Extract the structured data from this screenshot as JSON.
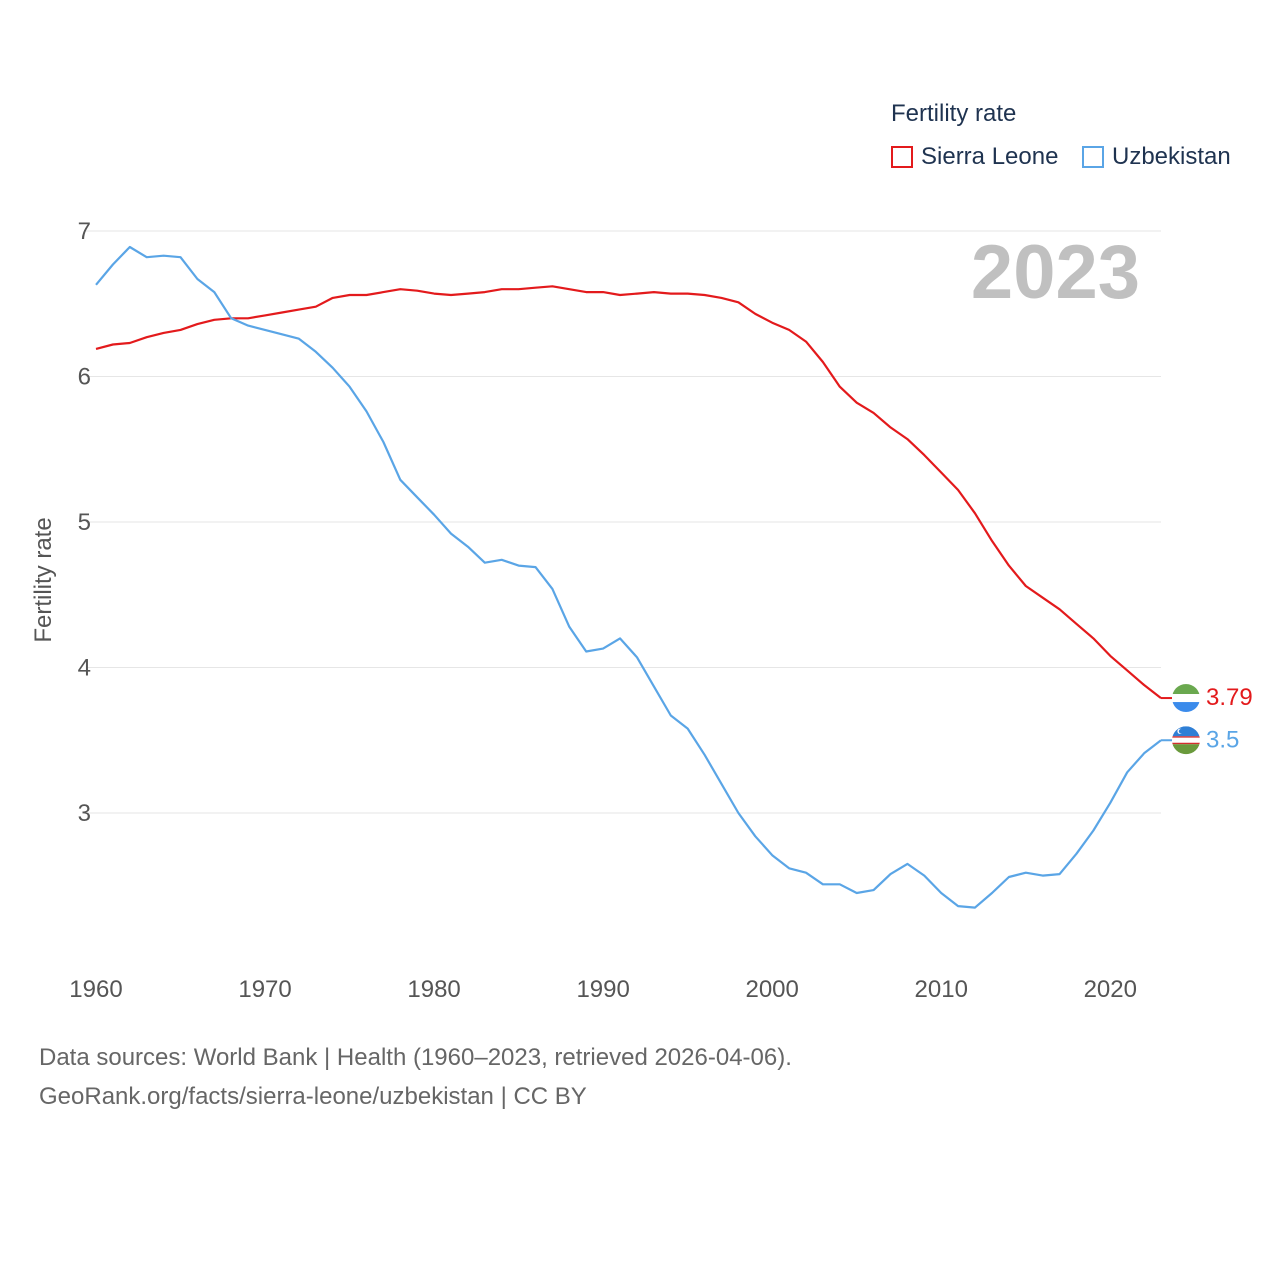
{
  "chart_data": {
    "type": "line",
    "title": "",
    "xlabel": "",
    "ylabel": "Fertility rate",
    "xlim": [
      1960,
      2023
    ],
    "ylim": [
      2,
      7
    ],
    "yticks": [
      3,
      4,
      5,
      6,
      7
    ],
    "xticks": [
      1960,
      1970,
      1980,
      1990,
      2000,
      2010,
      2020
    ],
    "year_label": "2023",
    "legend": {
      "title": "Fertility rate",
      "position": "top-right"
    },
    "x": [
      1960,
      1961,
      1962,
      1963,
      1964,
      1965,
      1966,
      1967,
      1968,
      1969,
      1970,
      1971,
      1972,
      1973,
      1974,
      1975,
      1976,
      1977,
      1978,
      1979,
      1980,
      1981,
      1982,
      1983,
      1984,
      1985,
      1986,
      1987,
      1988,
      1989,
      1990,
      1991,
      1992,
      1993,
      1994,
      1995,
      1996,
      1997,
      1998,
      1999,
      2000,
      2001,
      2002,
      2003,
      2004,
      2005,
      2006,
      2007,
      2008,
      2009,
      2010,
      2011,
      2012,
      2013,
      2014,
      2015,
      2016,
      2017,
      2018,
      2019,
      2020,
      2021,
      2022,
      2023
    ],
    "series": [
      {
        "name": "Sierra Leone",
        "color": "#e31a1c",
        "end_label": "3.79",
        "values": [
          6.19,
          6.22,
          6.23,
          6.27,
          6.3,
          6.32,
          6.36,
          6.39,
          6.4,
          6.4,
          6.42,
          6.44,
          6.46,
          6.48,
          6.54,
          6.56,
          6.56,
          6.58,
          6.6,
          6.59,
          6.57,
          6.56,
          6.57,
          6.58,
          6.6,
          6.6,
          6.61,
          6.62,
          6.6,
          6.58,
          6.58,
          6.56,
          6.57,
          6.58,
          6.57,
          6.57,
          6.56,
          6.54,
          6.51,
          6.43,
          6.37,
          6.32,
          6.24,
          6.1,
          5.93,
          5.82,
          5.75,
          5.65,
          5.57,
          5.46,
          5.34,
          5.22,
          5.06,
          4.87,
          4.7,
          4.56,
          4.48,
          4.4,
          4.3,
          4.2,
          4.08,
          3.98,
          3.88,
          3.79
        ]
      },
      {
        "name": "Uzbekistan",
        "color": "#5aa5e6",
        "end_label": "3.5",
        "values": [
          6.63,
          6.77,
          6.89,
          6.82,
          6.83,
          6.82,
          6.67,
          6.58,
          6.4,
          6.35,
          6.32,
          6.29,
          6.26,
          6.17,
          6.06,
          5.93,
          5.76,
          5.55,
          5.29,
          5.17,
          5.05,
          4.92,
          4.83,
          4.72,
          4.74,
          4.7,
          4.69,
          4.54,
          4.28,
          4.11,
          4.13,
          4.2,
          4.07,
          3.87,
          3.67,
          3.58,
          3.4,
          3.2,
          3.0,
          2.84,
          2.71,
          2.62,
          2.59,
          2.51,
          2.51,
          2.45,
          2.47,
          2.58,
          2.65,
          2.57,
          2.45,
          2.36,
          2.35,
          2.45,
          2.56,
          2.59,
          2.57,
          2.58,
          2.72,
          2.88,
          3.07,
          3.28,
          3.41,
          3.5
        ]
      }
    ]
  },
  "footer": {
    "line1": "Data sources: World Bank | Health (1960–2023, retrieved 2026-04-06).",
    "line2": "GeoRank.org/facts/sierra-leone/uzbekistan | CC BY"
  },
  "icons": {
    "sierra_leone_flag": "sierra-leone-flag-icon",
    "uzbekistan_flag": "uzbekistan-flag-icon"
  }
}
